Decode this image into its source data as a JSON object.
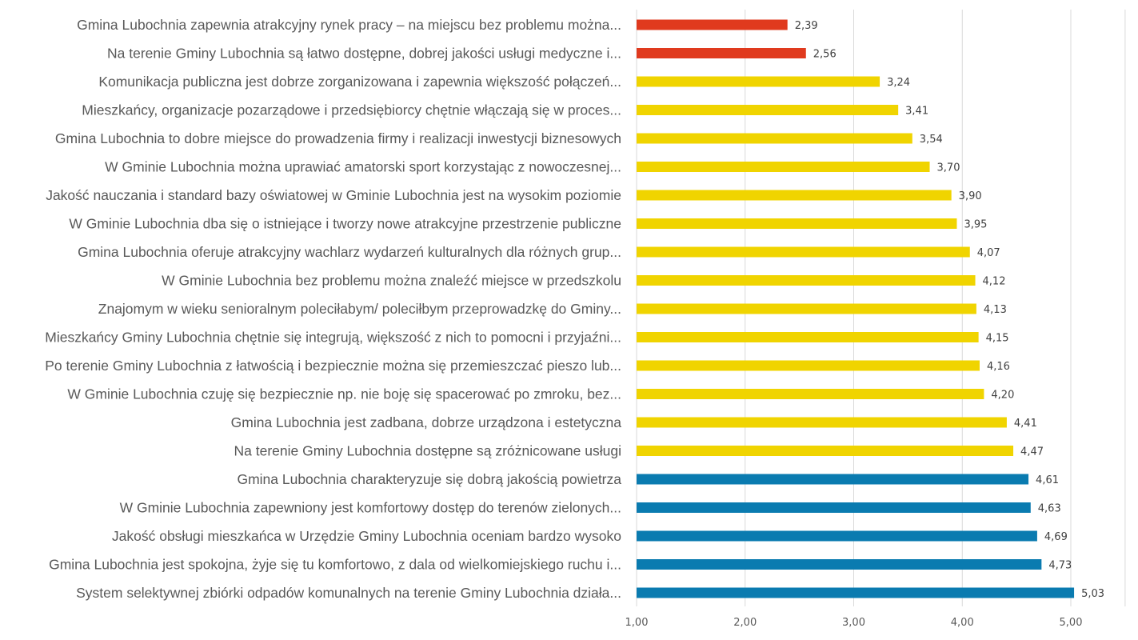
{
  "chart_data": {
    "type": "bar",
    "orientation": "horizontal",
    "title": "",
    "xlabel": "",
    "ylabel": "",
    "xlim": [
      1,
      5.5
    ],
    "grid": true,
    "legend": "none",
    "ticks": [
      "1,00",
      "2,00",
      "3,00",
      "4,00",
      "5,00"
    ],
    "tick_values": [
      1,
      2,
      3,
      4,
      5
    ],
    "colors": {
      "low": "#e03a1e",
      "mid": "#f0d400",
      "high": "#0a7bb0"
    },
    "categories": [
      "Gmina Lubochnia zapewnia atrakcyjny rynek pracy – na miejscu bez problemu można...",
      "Na terenie Gminy Lubochnia są łatwo dostępne, dobrej jakości usługi medyczne i...",
      "Komunikacja publiczna jest dobrze zorganizowana i zapewnia większość połączeń...",
      "Mieszkańcy, organizacje pozarządowe i przedsiębiorcy chętnie włączają się w proces...",
      "Gmina Lubochnia to dobre miejsce do prowadzenia firmy i realizacji inwestycji biznesowych",
      "W Gminie Lubochnia można uprawiać amatorski sport korzystając z nowoczesnej...",
      "Jakość nauczania i standard bazy oświatowej w Gminie Lubochnia jest na wysokim poziomie",
      "W Gminie Lubochnia dba się o istniejące i tworzy nowe atrakcyjne przestrzenie publiczne",
      "Gmina Lubochnia oferuje atrakcyjny wachlarz wydarzeń kulturalnych dla różnych grup...",
      "W Gminie Lubochnia bez problemu można znaleźć miejsce w przedszkolu",
      "Znajomym w wieku senioralnym poleciłabym/ poleciłbym przeprowadzkę do Gminy...",
      "Mieszkańcy Gminy Lubochnia chętnie się integrują, większość z nich to pomocni i przyjaźni...",
      "Po terenie Gminy Lubochnia z łatwością i bezpiecznie można się przemieszczać pieszo lub...",
      "W Gminie Lubochnia czuję się bezpiecznie np. nie boję się spacerować po zmroku, bez...",
      "Gmina Lubochnia jest zadbana, dobrze urządzona i estetyczna",
      "Na terenie Gminy Lubochnia dostępne są zróżnicowane usługi",
      "Gmina Lubochnia charakteryzuje się dobrą jakością powietrza",
      "W Gminie Lubochnia zapewniony jest komfortowy dostęp do terenów zielonych...",
      "Jakość obsługi mieszkańca w Urzędzie Gminy Lubochnia oceniam bardzo wysoko",
      "Gmina Lubochnia jest spokojna, żyje się tu komfortowo, z dala od wielkomiejskiego ruchu i...",
      "System selektywnej zbiórki odpadów komunalnych na terenie Gminy Lubochnia działa..."
    ],
    "values": [
      2.39,
      2.56,
      3.24,
      3.41,
      3.54,
      3.7,
      3.9,
      3.95,
      4.07,
      4.12,
      4.13,
      4.15,
      4.16,
      4.2,
      4.41,
      4.47,
      4.61,
      4.63,
      4.69,
      4.73,
      5.03
    ],
    "value_labels": [
      "2,39",
      "2,56",
      "3,24",
      "3,41",
      "3,54",
      "3,70",
      "3,90",
      "3,95",
      "4,07",
      "4,12",
      "4,13",
      "4,15",
      "4,16",
      "4,20",
      "4,41",
      "4,47",
      "4,61",
      "4,63",
      "4,69",
      "4,73",
      "5,03"
    ],
    "color_groups": [
      "low",
      "low",
      "mid",
      "mid",
      "mid",
      "mid",
      "mid",
      "mid",
      "mid",
      "mid",
      "mid",
      "mid",
      "mid",
      "mid",
      "mid",
      "mid",
      "high",
      "high",
      "high",
      "high",
      "high"
    ]
  }
}
